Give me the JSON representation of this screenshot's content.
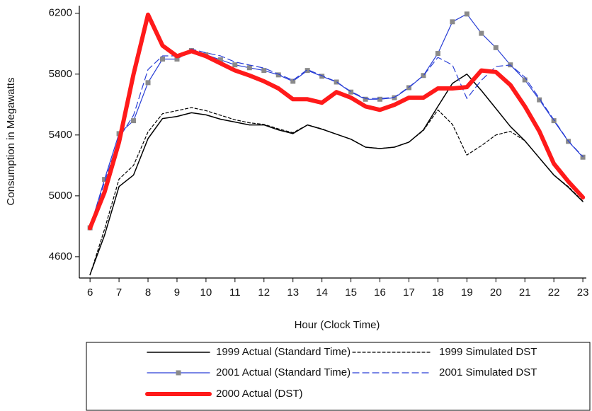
{
  "chart_data": {
    "type": "line",
    "xlabel": "Hour (Clock Time)",
    "ylabel": "Consumption in Megawatts",
    "x": [
      6,
      6.5,
      7,
      7.5,
      8,
      8.5,
      9,
      9.5,
      10,
      10.5,
      11,
      11.5,
      12,
      12.5,
      13,
      13.5,
      14,
      14.5,
      15,
      15.5,
      16,
      16.5,
      17,
      17.5,
      18,
      18.5,
      19,
      19.5,
      20,
      20.5,
      21,
      21.5,
      22,
      22.5,
      23
    ],
    "xlim": [
      5.63,
      23.12
    ],
    "xticks": [
      6,
      7,
      8,
      9,
      10,
      11,
      12,
      13,
      14,
      15,
      16,
      17,
      18,
      19,
      20,
      21,
      22,
      23
    ],
    "ylim": [
      4460,
      6250
    ],
    "yticks": [
      4600,
      5000,
      5400,
      5800,
      6200
    ],
    "grid": false,
    "series": [
      {
        "name": "1999 Actual (Standard Time)",
        "color": "#000000",
        "width": 1.5,
        "dash": "none",
        "marker": false,
        "values": [
          4482,
          4741,
          5061,
          5137,
          5376,
          5508,
          5522,
          5546,
          5532,
          5504,
          5485,
          5466,
          5466,
          5433,
          5409,
          5466,
          5438,
          5405,
          5372,
          5320,
          5311,
          5320,
          5353,
          5433,
          5588,
          5739,
          5800,
          5692,
          5574,
          5456,
          5362,
          5249,
          5137,
          5056,
          4962
        ]
      },
      {
        "name": "1999 Simulated DST",
        "color": "#000000",
        "width": 1.2,
        "dash": "4 3",
        "marker": false,
        "values": [
          4480,
          4780,
          5110,
          5200,
          5420,
          5540,
          5560,
          5580,
          5560,
          5530,
          5500,
          5480,
          5470,
          5440,
          5415,
          5466,
          5440,
          5405,
          5372,
          5320,
          5311,
          5320,
          5353,
          5430,
          5565,
          5470,
          5268,
          5330,
          5400,
          5424,
          5362,
          5249,
          5137,
          5060,
          4965
        ]
      },
      {
        "name": "2001 Actual (Standard Time)",
        "color": "#2a3fd6",
        "width": 1.2,
        "dash": "none",
        "marker": true,
        "marker_color": "#8a8a8a",
        "values": [
          4790,
          5108,
          5409,
          5494,
          5744,
          5899,
          5899,
          5955,
          5927,
          5894,
          5861,
          5842,
          5824,
          5795,
          5753,
          5824,
          5786,
          5748,
          5682,
          5635,
          5635,
          5645,
          5711,
          5791,
          5936,
          6144,
          6195,
          6068,
          5974,
          5861,
          5762,
          5631,
          5494,
          5358,
          5254
        ]
      },
      {
        "name": "2001 Simulated DST",
        "color": "#2a3fd6",
        "width": 1.2,
        "dash": "9 5",
        "marker": false,
        "values": [
          4790,
          5090,
          5380,
          5530,
          5830,
          5920,
          5920,
          5965,
          5940,
          5920,
          5880,
          5860,
          5840,
          5800,
          5760,
          5830,
          5790,
          5750,
          5685,
          5640,
          5640,
          5648,
          5715,
          5790,
          5910,
          5860,
          5640,
          5760,
          5850,
          5860,
          5780,
          5640,
          5500,
          5360,
          5258
        ]
      },
      {
        "name": "2000 Actual (DST)",
        "color": "#ff1a1a",
        "width": 6,
        "dash": "none",
        "marker": false,
        "values": [
          4788,
          5024,
          5353,
          5800,
          6191,
          5988,
          5918,
          5951,
          5918,
          5871,
          5824,
          5791,
          5753,
          5706,
          5635,
          5635,
          5612,
          5682,
          5645,
          5588,
          5565,
          5598,
          5645,
          5645,
          5706,
          5706,
          5715,
          5824,
          5814,
          5729,
          5588,
          5424,
          5212,
          5094,
          4990
        ]
      }
    ]
  }
}
